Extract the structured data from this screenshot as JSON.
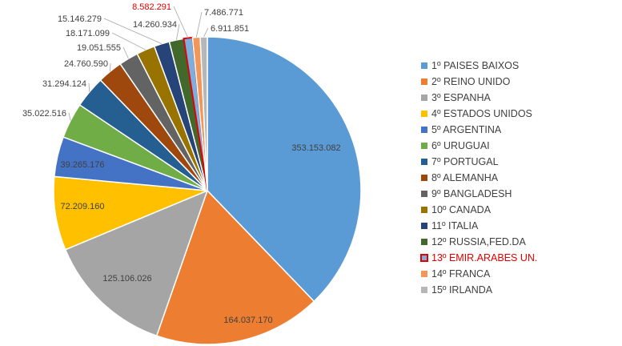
{
  "chart_data": {
    "type": "pie",
    "title": "",
    "categories": [
      "1º PAISES BAIXOS",
      "2º REINO UNIDO",
      "3º ESPANHA",
      "4º ESTADOS UNIDOS",
      "5º ARGENTINA",
      "6º URUGUAI",
      "7º PORTUGAL",
      "8º ALEMANHA",
      "9º BANGLADESH",
      "10º CANADA",
      "11º ITALIA",
      "12º RUSSIA,FED.DA",
      "13º EMIR.ARABES UN.",
      "14º FRANCA",
      "15º IRLANDA"
    ],
    "values": [
      353153082,
      164037170,
      125106026,
      72209160,
      39265176,
      35022516,
      31294124,
      24760590,
      19051555,
      18171099,
      15146279,
      14260934,
      8582291,
      7486771,
      6911851
    ],
    "data_labels": [
      "353.153.082",
      "164.037.170",
      "125.106.026",
      "72.209.160",
      "39.265.176",
      "35.022.516",
      "31.294.124",
      "24.760.590",
      "19.051.555",
      "18.171.099",
      "15.146.279",
      "14.260.934",
      "8.582.291",
      "7.486.771",
      "6.911.851"
    ],
    "colors": [
      "#5b9bd5",
      "#ed7d31",
      "#a5a5a5",
      "#ffc000",
      "#4472c4",
      "#70ad47",
      "#255e91",
      "#9e480e",
      "#636363",
      "#997300",
      "#264478",
      "#43682b",
      "#7cafdd",
      "#f1975a",
      "#b7b7b7"
    ],
    "highlight_index": 12,
    "highlight_color": "#e00000",
    "legend_position": "right"
  }
}
